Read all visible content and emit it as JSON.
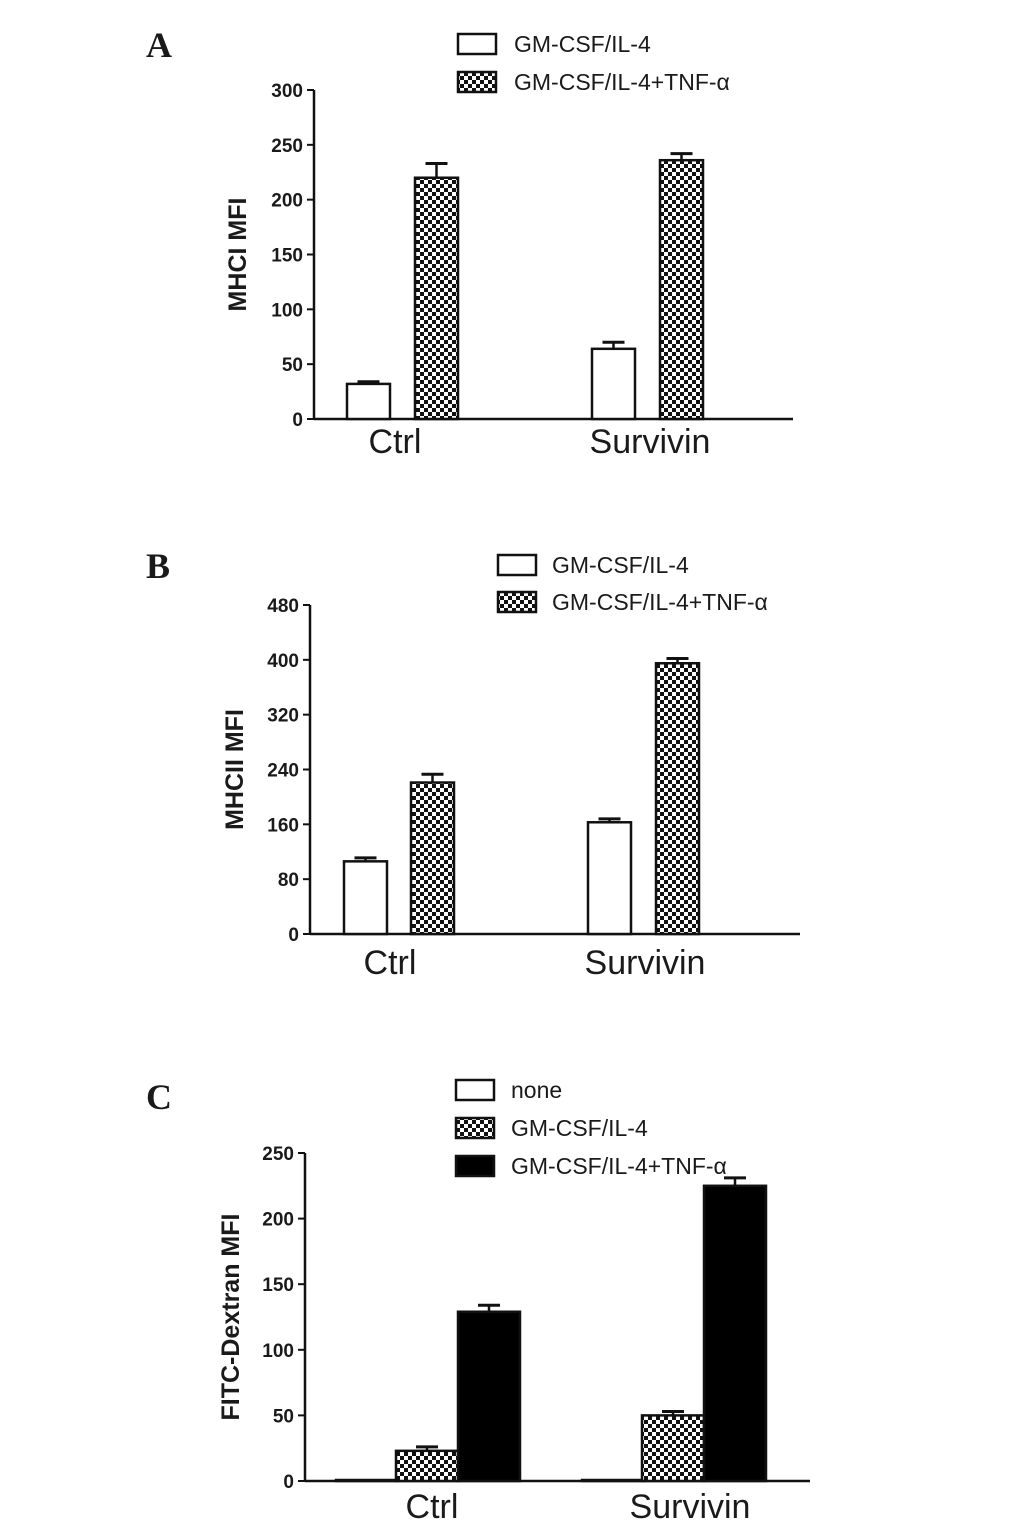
{
  "colors": {
    "axis": "#111111",
    "bar_fill_open": "#ffffff",
    "bar_fill_solid": "#000000",
    "bar_stroke": "#111111"
  },
  "chart_data": [
    {
      "panel": "A",
      "type": "bar",
      "ylabel": "MHCI MFI",
      "ylim": [
        0,
        300
      ],
      "yticks": [
        "0",
        "50",
        "100",
        "150",
        "200",
        "250",
        "300"
      ],
      "categories": [
        "Ctrl",
        "Survivin"
      ],
      "series": [
        {
          "name": "GM-CSF/IL-4",
          "pattern": "open",
          "values": [
            32,
            64
          ],
          "errors": [
            2,
            6
          ]
        },
        {
          "name": "GM-CSF/IL-4+TNF-α",
          "pattern": "checker",
          "values": [
            220,
            236
          ],
          "errors": [
            13,
            6
          ]
        }
      ],
      "legend_position": "top-right"
    },
    {
      "panel": "B",
      "type": "bar",
      "ylabel": "MHCII MFI",
      "ylim": [
        0,
        480
      ],
      "yticks": [
        "0",
        "80",
        "160",
        "240",
        "320",
        "400",
        "480"
      ],
      "categories": [
        "Ctrl",
        "Survivin"
      ],
      "series": [
        {
          "name": "GM-CSF/IL-4",
          "pattern": "open",
          "values": [
            106,
            163
          ],
          "errors": [
            5,
            5
          ]
        },
        {
          "name": "GM-CSF/IL-4+TNF-α",
          "pattern": "checker",
          "values": [
            221,
            395
          ],
          "errors": [
            12,
            7
          ]
        }
      ],
      "legend_position": "top-right"
    },
    {
      "panel": "C",
      "type": "bar",
      "ylabel": "FITC-Dextran MFI",
      "ylim": [
        0,
        250
      ],
      "yticks": [
        "0",
        "50",
        "100",
        "150",
        "200",
        "250"
      ],
      "categories": [
        "Ctrl",
        "Survivin"
      ],
      "series": [
        {
          "name": "none",
          "pattern": "open",
          "values": [
            0.5,
            0.5
          ],
          "errors": [
            0,
            0
          ]
        },
        {
          "name": "GM-CSF/IL-4",
          "pattern": "checker",
          "values": [
            23,
            50
          ],
          "errors": [
            3,
            3
          ]
        },
        {
          "name": "GM-CSF/IL-4+TNF-α",
          "pattern": "solid",
          "values": [
            129,
            225
          ],
          "errors": [
            5,
            6
          ]
        }
      ],
      "legend_position": "top-right"
    }
  ]
}
